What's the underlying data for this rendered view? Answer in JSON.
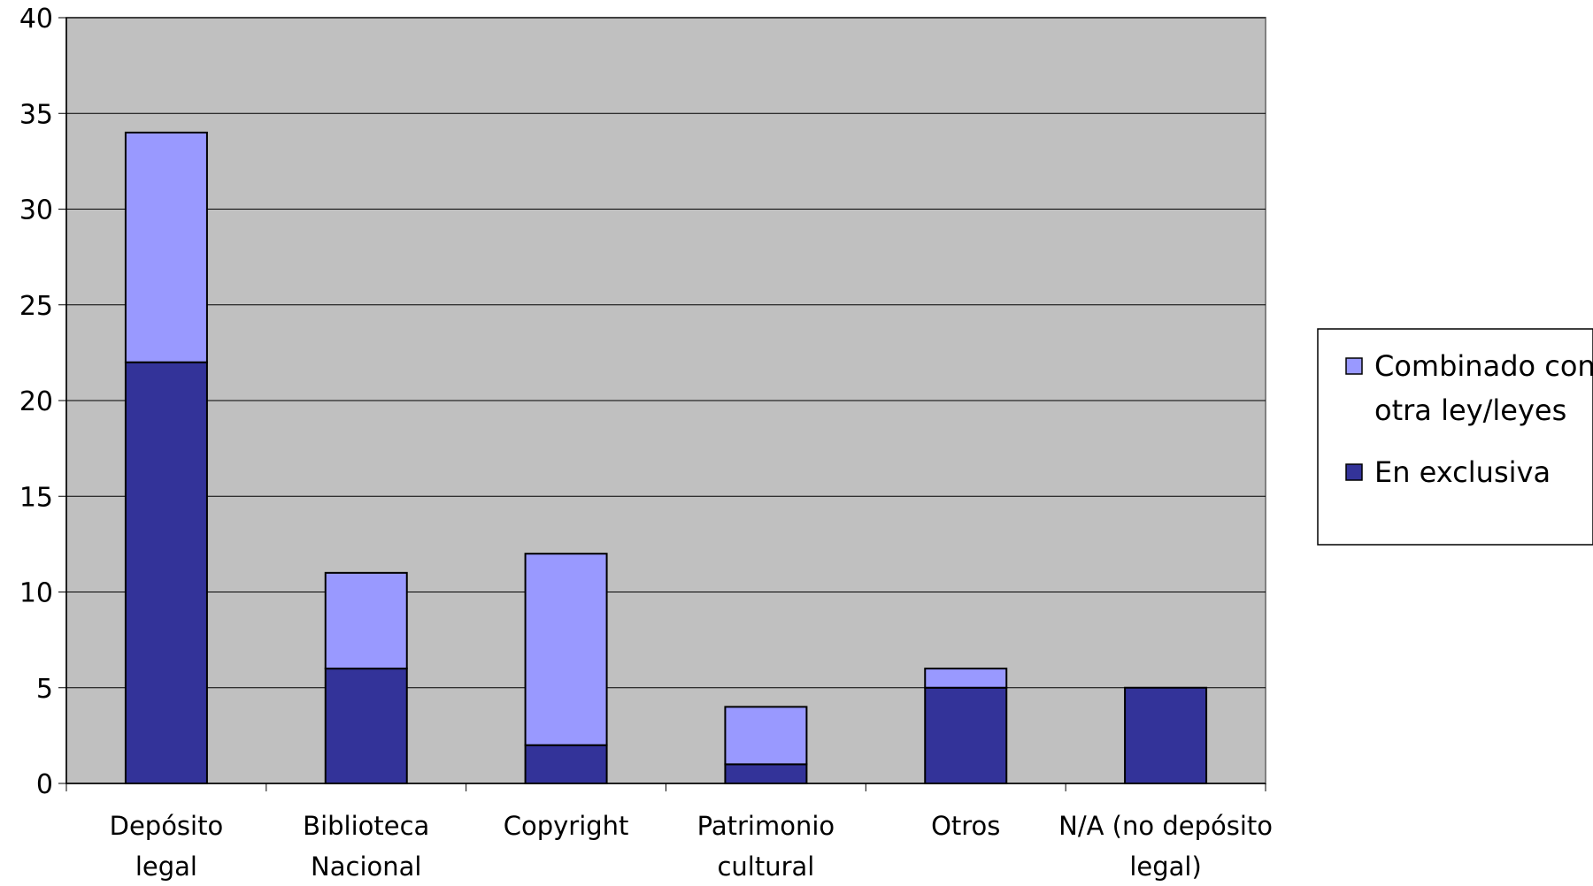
{
  "chart_data": {
    "type": "bar",
    "stacked": true,
    "categories": [
      [
        "Depósito",
        "legal"
      ],
      [
        "Biblioteca",
        "Nacional"
      ],
      [
        "Copyright"
      ],
      [
        "Patrimonio",
        "cultural"
      ],
      [
        "Otros"
      ],
      [
        "N/A (no depósito",
        "legal)"
      ]
    ],
    "series": [
      {
        "name": "En exclusiva",
        "values": [
          22,
          6,
          2,
          1,
          5,
          5
        ],
        "color": "#333399"
      },
      {
        "name": "Combinado con otra ley/leyes",
        "values": [
          12,
          5,
          10,
          3,
          1,
          0
        ],
        "color": "#9999ff"
      }
    ],
    "legend": {
      "placement": "right",
      "entries": [
        {
          "series_index": 1,
          "lines": [
            "Combinado con",
            "otra ley/leyes"
          ]
        },
        {
          "series_index": 0,
          "lines": [
            "En exclusiva"
          ]
        }
      ]
    },
    "ylim": [
      0,
      40
    ],
    "yticks": [
      0,
      5,
      10,
      15,
      20,
      25,
      30,
      35,
      40
    ],
    "grid": true,
    "plot_background": "#c0c0c0",
    "title": "",
    "xlabel": "",
    "ylabel": ""
  }
}
